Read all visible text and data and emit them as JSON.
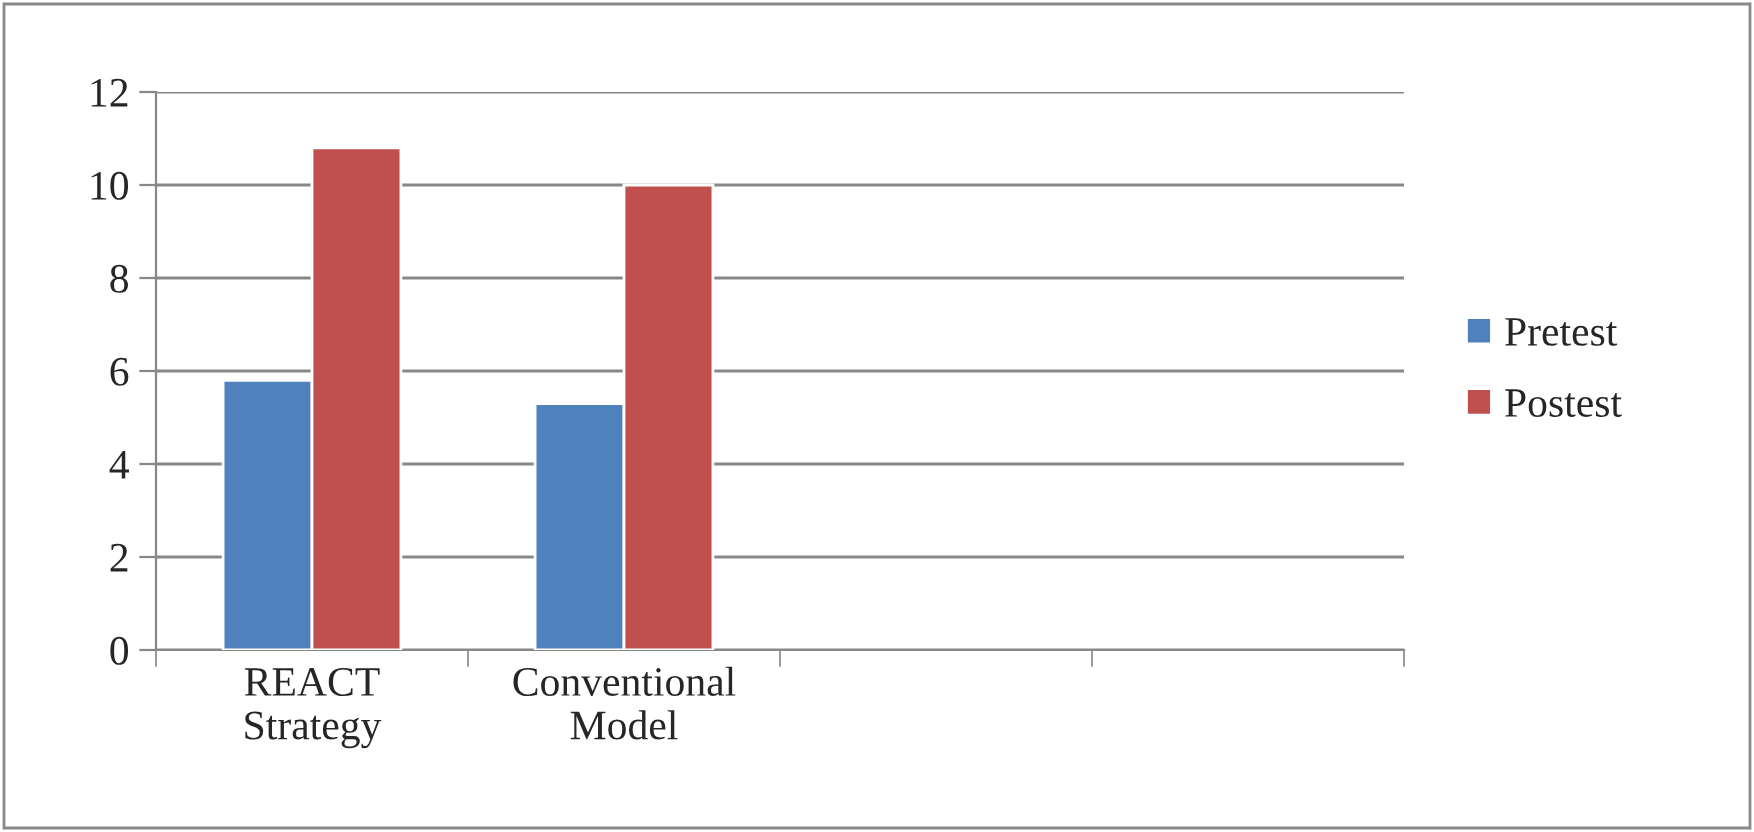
{
  "chart_data": {
    "type": "bar",
    "categories": [
      "REACT\nStrategy",
      "Conventional\nModel",
      null,
      null
    ],
    "series": [
      {
        "name": "Pretest",
        "color": "#4f81bd",
        "values": [
          5.8,
          5.3,
          null,
          null
        ]
      },
      {
        "name": "Postest",
        "color": "#c0504d",
        "values": [
          10.8,
          10.0,
          null,
          null
        ]
      }
    ],
    "ylim": [
      0,
      12
    ],
    "yticks": [
      0,
      2,
      4,
      6,
      8,
      10,
      12
    ],
    "grid": "y",
    "legend": "right"
  }
}
